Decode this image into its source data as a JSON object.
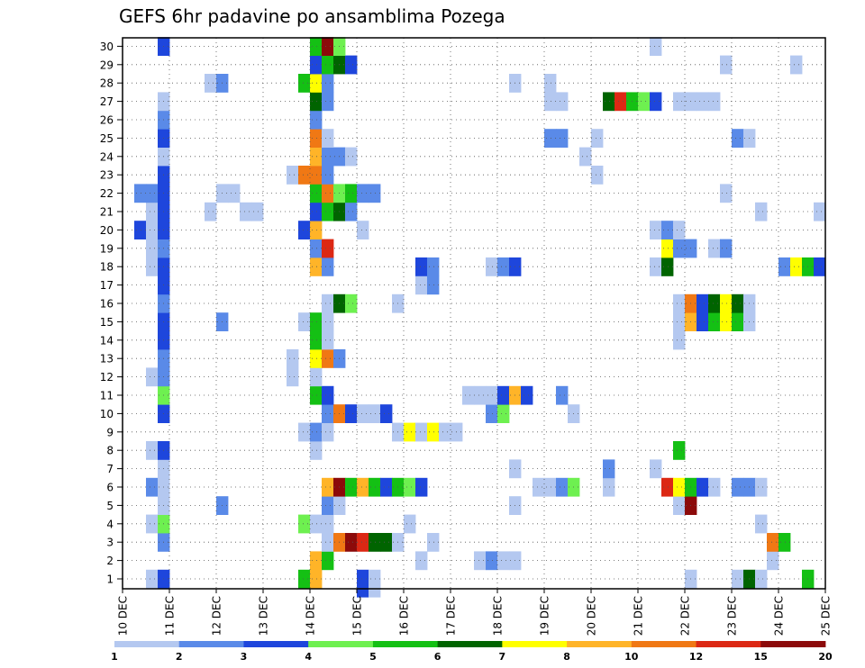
{
  "chart_data": {
    "type": "heatmap",
    "title": "GEFS 6hr padavine po ansamblima Pozega",
    "xlabel": "",
    "ylabel": "",
    "x_range": [
      "10 DEC",
      "25 DEC"
    ],
    "x_ticks": [
      "10 DEC",
      "11 DEC",
      "12 DEC",
      "13 DEC",
      "14 DEC",
      "15 DEC",
      "16 DEC",
      "17 DEC",
      "18 DEC",
      "19 DEC",
      "20 DEC",
      "21 DEC",
      "22 DEC",
      "23 DEC",
      "24 DEC",
      "25 DEC"
    ],
    "y_ticks": [
      1,
      2,
      3,
      4,
      5,
      6,
      7,
      8,
      9,
      10,
      11,
      12,
      13,
      14,
      15,
      16,
      17,
      18,
      19,
      20,
      21,
      22,
      23,
      24,
      25,
      26,
      27,
      28,
      29,
      30
    ],
    "grid": true,
    "color_levels": [
      "1",
      "2",
      "3",
      "4",
      "5",
      "6",
      "7",
      "8",
      "10",
      "12",
      "15",
      "20"
    ],
    "color_bins": [
      "#b4c8f0",
      "#5a8ae8",
      "#1e46dc",
      "#6ef050",
      "#14c014",
      "#006400",
      "#ffff00",
      "#ffb428",
      "#f07814",
      "#dc2814",
      "#8c0a0a"
    ],
    "cells": [
      [
        1,
        2,
        1
      ],
      [
        1,
        3,
        3
      ],
      [
        1,
        15,
        5
      ],
      [
        1,
        16,
        8
      ],
      [
        1,
        20,
        3
      ],
      [
        1,
        21,
        1
      ],
      [
        1,
        48,
        1
      ],
      [
        1,
        52,
        1
      ],
      [
        1,
        53,
        6
      ],
      [
        1,
        54,
        1
      ],
      [
        1,
        58,
        5
      ],
      [
        2,
        16,
        8
      ],
      [
        2,
        17,
        5
      ],
      [
        2,
        25,
        1
      ],
      [
        2,
        30,
        1
      ],
      [
        2,
        31,
        2
      ],
      [
        2,
        32,
        1
      ],
      [
        2,
        33,
        1
      ],
      [
        2,
        55,
        1
      ],
      [
        3,
        3,
        2
      ],
      [
        3,
        17,
        1
      ],
      [
        3,
        18,
        9
      ],
      [
        3,
        19,
        11
      ],
      [
        3,
        20,
        10
      ],
      [
        3,
        21,
        6
      ],
      [
        3,
        22,
        6
      ],
      [
        3,
        23,
        1
      ],
      [
        3,
        26,
        1
      ],
      [
        3,
        55,
        9
      ],
      [
        3,
        56,
        5
      ],
      [
        4,
        2,
        1
      ],
      [
        4,
        3,
        4
      ],
      [
        4,
        15,
        4
      ],
      [
        4,
        16,
        1
      ],
      [
        4,
        17,
        1
      ],
      [
        4,
        24,
        1
      ],
      [
        4,
        54,
        1
      ],
      [
        5,
        3,
        1
      ],
      [
        5,
        8,
        2
      ],
      [
        5,
        17,
        2
      ],
      [
        5,
        18,
        1
      ],
      [
        5,
        33,
        1
      ],
      [
        5,
        47,
        1
      ],
      [
        5,
        48,
        11
      ],
      [
        6,
        2,
        2
      ],
      [
        6,
        3,
        1
      ],
      [
        6,
        17,
        8
      ],
      [
        6,
        18,
        11
      ],
      [
        6,
        19,
        5
      ],
      [
        6,
        20,
        8
      ],
      [
        6,
        21,
        5
      ],
      [
        6,
        22,
        3
      ],
      [
        6,
        23,
        5
      ],
      [
        6,
        24,
        4
      ],
      [
        6,
        25,
        3
      ],
      [
        6,
        35,
        1
      ],
      [
        6,
        36,
        1
      ],
      [
        6,
        37,
        2
      ],
      [
        6,
        38,
        4
      ],
      [
        6,
        41,
        1
      ],
      [
        6,
        46,
        10
      ],
      [
        6,
        47,
        7
      ],
      [
        6,
        48,
        5
      ],
      [
        6,
        49,
        3
      ],
      [
        6,
        50,
        1
      ],
      [
        6,
        52,
        2
      ],
      [
        6,
        53,
        2
      ],
      [
        6,
        54,
        1
      ],
      [
        7,
        3,
        1
      ],
      [
        7,
        33,
        1
      ],
      [
        7,
        41,
        2
      ],
      [
        7,
        45,
        1
      ],
      [
        8,
        2,
        1
      ],
      [
        8,
        3,
        3
      ],
      [
        8,
        16,
        1
      ],
      [
        8,
        47,
        5
      ],
      [
        9,
        15,
        1
      ],
      [
        9,
        16,
        2
      ],
      [
        9,
        17,
        1
      ],
      [
        9,
        23,
        1
      ],
      [
        9,
        24,
        7
      ],
      [
        9,
        25,
        1
      ],
      [
        9,
        26,
        7
      ],
      [
        9,
        27,
        1
      ],
      [
        9,
        28,
        1
      ],
      [
        10,
        3,
        3
      ],
      [
        10,
        17,
        2
      ],
      [
        10,
        18,
        9
      ],
      [
        10,
        19,
        3
      ],
      [
        10,
        20,
        1
      ],
      [
        10,
        21,
        1
      ],
      [
        10,
        22,
        3
      ],
      [
        10,
        31,
        2
      ],
      [
        10,
        32,
        4
      ],
      [
        10,
        38,
        1
      ],
      [
        11,
        3,
        4
      ],
      [
        11,
        16,
        5
      ],
      [
        11,
        17,
        3
      ],
      [
        11,
        29,
        1
      ],
      [
        11,
        30,
        1
      ],
      [
        11,
        31,
        1
      ],
      [
        11,
        32,
        3
      ],
      [
        11,
        33,
        8
      ],
      [
        11,
        34,
        3
      ],
      [
        11,
        37,
        2
      ],
      [
        12,
        2,
        1
      ],
      [
        12,
        3,
        2
      ],
      [
        12,
        14,
        1
      ],
      [
        12,
        16,
        1
      ],
      [
        13,
        3,
        2
      ],
      [
        13,
        14,
        1
      ],
      [
        13,
        16,
        7
      ],
      [
        13,
        17,
        9
      ],
      [
        13,
        18,
        2
      ],
      [
        14,
        3,
        3
      ],
      [
        14,
        16,
        5
      ],
      [
        14,
        17,
        1
      ],
      [
        14,
        47,
        1
      ],
      [
        15,
        3,
        3
      ],
      [
        15,
        8,
        2
      ],
      [
        15,
        15,
        1
      ],
      [
        15,
        16,
        5
      ],
      [
        15,
        17,
        1
      ],
      [
        15,
        47,
        1
      ],
      [
        15,
        48,
        8
      ],
      [
        15,
        49,
        3
      ],
      [
        15,
        50,
        5
      ],
      [
        15,
        51,
        7
      ],
      [
        15,
        52,
        5
      ],
      [
        15,
        53,
        1
      ],
      [
        16,
        3,
        2
      ],
      [
        16,
        17,
        1
      ],
      [
        16,
        18,
        6
      ],
      [
        16,
        19,
        4
      ],
      [
        16,
        23,
        1
      ],
      [
        16,
        47,
        1
      ],
      [
        16,
        48,
        9
      ],
      [
        16,
        49,
        3
      ],
      [
        16,
        50,
        6
      ],
      [
        16,
        51,
        7
      ],
      [
        16,
        52,
        6
      ],
      [
        16,
        53,
        1
      ],
      [
        17,
        3,
        3
      ],
      [
        17,
        25,
        1
      ],
      [
        17,
        26,
        2
      ],
      [
        18,
        2,
        1
      ],
      [
        18,
        3,
        3
      ],
      [
        18,
        16,
        8
      ],
      [
        18,
        17,
        2
      ],
      [
        18,
        25,
        3
      ],
      [
        18,
        26,
        2
      ],
      [
        18,
        31,
        1
      ],
      [
        18,
        32,
        2
      ],
      [
        18,
        33,
        3
      ],
      [
        18,
        45,
        1
      ],
      [
        18,
        46,
        6
      ],
      [
        18,
        56,
        2
      ],
      [
        18,
        57,
        7
      ],
      [
        18,
        58,
        5
      ],
      [
        18,
        59,
        3
      ],
      [
        19,
        2,
        1
      ],
      [
        19,
        3,
        2
      ],
      [
        19,
        16,
        2
      ],
      [
        19,
        17,
        10
      ],
      [
        19,
        46,
        7
      ],
      [
        19,
        47,
        2
      ],
      [
        19,
        48,
        2
      ],
      [
        19,
        50,
        1
      ],
      [
        19,
        51,
        2
      ],
      [
        20,
        1,
        3
      ],
      [
        20,
        2,
        1
      ],
      [
        20,
        3,
        3
      ],
      [
        20,
        15,
        3
      ],
      [
        20,
        16,
        8
      ],
      [
        20,
        20,
        1
      ],
      [
        20,
        45,
        1
      ],
      [
        20,
        46,
        2
      ],
      [
        20,
        47,
        1
      ],
      [
        21,
        2,
        1
      ],
      [
        21,
        3,
        3
      ],
      [
        21,
        7,
        1
      ],
      [
        21,
        10,
        1
      ],
      [
        21,
        11,
        1
      ],
      [
        21,
        16,
        3
      ],
      [
        21,
        17,
        5
      ],
      [
        21,
        18,
        6
      ],
      [
        21,
        19,
        2
      ],
      [
        21,
        54,
        1
      ],
      [
        21,
        59,
        1
      ],
      [
        22,
        1,
        2
      ],
      [
        22,
        2,
        2
      ],
      [
        22,
        3,
        3
      ],
      [
        22,
        8,
        1
      ],
      [
        22,
        9,
        1
      ],
      [
        22,
        16,
        5
      ],
      [
        22,
        17,
        9
      ],
      [
        22,
        18,
        4
      ],
      [
        22,
        19,
        5
      ],
      [
        22,
        20,
        2
      ],
      [
        22,
        21,
        2
      ],
      [
        22,
        51,
        1
      ],
      [
        23,
        3,
        3
      ],
      [
        23,
        14,
        1
      ],
      [
        23,
        15,
        9
      ],
      [
        23,
        16,
        9
      ],
      [
        23,
        17,
        2
      ],
      [
        23,
        40,
        1
      ],
      [
        24,
        3,
        1
      ],
      [
        24,
        16,
        8
      ],
      [
        24,
        17,
        2
      ],
      [
        24,
        18,
        2
      ],
      [
        24,
        19,
        1
      ],
      [
        24,
        39,
        1
      ],
      [
        25,
        3,
        3
      ],
      [
        25,
        16,
        9
      ],
      [
        25,
        17,
        1
      ],
      [
        25,
        36,
        2
      ],
      [
        25,
        37,
        2
      ],
      [
        25,
        40,
        1
      ],
      [
        25,
        52,
        2
      ],
      [
        25,
        53,
        1
      ],
      [
        26,
        3,
        2
      ],
      [
        26,
        16,
        2
      ],
      [
        27,
        3,
        1
      ],
      [
        27,
        16,
        6
      ],
      [
        27,
        17,
        2
      ],
      [
        27,
        36,
        1
      ],
      [
        27,
        37,
        1
      ],
      [
        27,
        41,
        6
      ],
      [
        27,
        42,
        10
      ],
      [
        27,
        43,
        5
      ],
      [
        27,
        44,
        4
      ],
      [
        27,
        45,
        3
      ],
      [
        27,
        47,
        1
      ],
      [
        27,
        48,
        1
      ],
      [
        27,
        49,
        1
      ],
      [
        27,
        50,
        1
      ],
      [
        28,
        7,
        1
      ],
      [
        28,
        8,
        2
      ],
      [
        28,
        15,
        5
      ],
      [
        28,
        16,
        7
      ],
      [
        28,
        17,
        2
      ],
      [
        28,
        33,
        1
      ],
      [
        28,
        36,
        1
      ],
      [
        29,
        16,
        3
      ],
      [
        29,
        17,
        5
      ],
      [
        29,
        18,
        6
      ],
      [
        29,
        19,
        3
      ],
      [
        29,
        51,
        1
      ],
      [
        29,
        57,
        1
      ],
      [
        30,
        3,
        3
      ],
      [
        30,
        16,
        5
      ],
      [
        30,
        17,
        11
      ],
      [
        30,
        18,
        4
      ],
      [
        30,
        45,
        1
      ]
    ],
    "bottom_cells": [
      [
        0,
        20,
        3
      ],
      [
        0,
        21,
        1
      ]
    ]
  }
}
